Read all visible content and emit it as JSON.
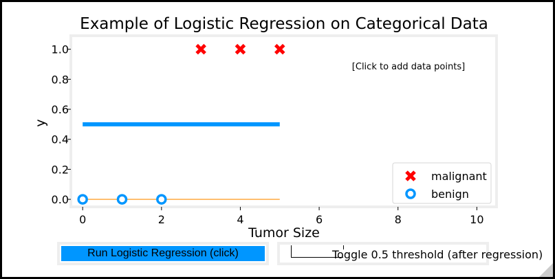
{
  "chart_data": {
    "type": "scatter",
    "title": "Example of Logistic Regression on Categorical Data",
    "xlabel": "Tumor Size",
    "ylabel": "y",
    "xlim": [
      -0.3,
      10.5
    ],
    "ylim": [
      -0.05,
      1.09
    ],
    "xticks": [
      0,
      2,
      4,
      6,
      8,
      10
    ],
    "yticks": [
      0.0,
      0.2,
      0.4,
      0.6,
      0.8,
      1.0
    ],
    "ytick_labels": [
      "0.0",
      "0.2",
      "0.4",
      "0.6",
      "0.8",
      "1.0"
    ],
    "series": [
      {
        "name": "malignant",
        "marker": "x",
        "color": "#ff0000",
        "x": [
          3,
          4,
          5
        ],
        "y": [
          1,
          1,
          1
        ]
      },
      {
        "name": "benign",
        "marker": "o",
        "color": "#0096ff",
        "x": [
          0,
          1,
          2
        ],
        "y": [
          0,
          0,
          0
        ]
      }
    ],
    "lines": [
      {
        "color": "#0096ff",
        "x": [
          0,
          5
        ],
        "y": [
          0.5,
          0.5
        ]
      },
      {
        "color": "#ff8c00",
        "x": [
          0,
          5
        ],
        "y": [
          0,
          0
        ]
      }
    ],
    "annotation": "[Click to add data points]",
    "legend_position": "lower-right",
    "grid": false
  },
  "controls": {
    "run_button_label": "Run Logistic Regression (click)",
    "toggle_label": "Toggle 0.5 threshold (after regression)"
  },
  "colors": {
    "accent": "#0096ff",
    "malignant": "#ff0000",
    "orange_line": "#ff8c00",
    "frame_border": "#eeeeee"
  }
}
